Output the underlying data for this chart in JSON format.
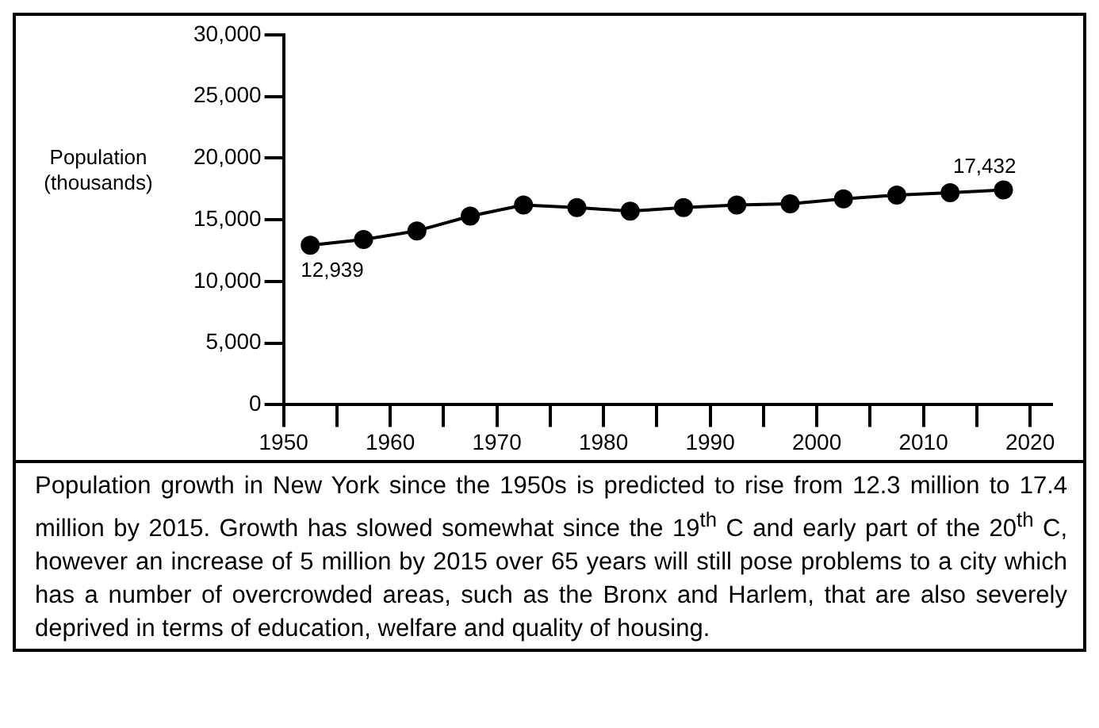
{
  "chart_data": {
    "type": "line",
    "ylabel": "Population\n(thousands)",
    "x": [
      1952.5,
      1957.5,
      1962.5,
      1967.5,
      1972.5,
      1977.5,
      1982.5,
      1987.5,
      1992.5,
      1997.5,
      2002.5,
      2007.5,
      2012.5,
      2017.5
    ],
    "series": [
      {
        "color": "#000000",
        "values": [
          12939,
          13400,
          14100,
          15300,
          16200,
          16000,
          15700,
          16000,
          16200,
          16300,
          16700,
          17000,
          17200,
          17432
        ],
        "value_labels": [
          "12,939",
          null,
          null,
          null,
          null,
          null,
          null,
          null,
          null,
          null,
          null,
          null,
          null,
          "17,432"
        ]
      }
    ],
    "xlim": [
      1950,
      2022
    ],
    "xticks": [
      1950,
      {
        "value": 1955,
        "label": null
      },
      1960,
      {
        "value": 1965,
        "label": null
      },
      1970,
      {
        "value": 1975,
        "label": null
      },
      1980,
      {
        "value": 1985,
        "label": null
      },
      1990,
      {
        "value": 1995,
        "label": null
      },
      2000,
      {
        "value": 2005,
        "label": null
      },
      2010,
      {
        "value": 2015,
        "label": null
      },
      2020
    ],
    "ylim": [
      0,
      30000
    ],
    "yticks": [
      {
        "value": 0,
        "label": "0"
      },
      {
        "value": 5000,
        "label": "5,000"
      },
      {
        "value": 10000,
        "label": "10,000"
      },
      {
        "value": 15000,
        "label": "15,000"
      },
      {
        "value": 20000,
        "label": "20,000"
      },
      {
        "value": 25000,
        "label": "25,000"
      },
      {
        "value": 30000,
        "label": "30,000"
      }
    ],
    "grid": false,
    "legend": false,
    "marker": "circle",
    "line_style": "solid",
    "annotations": [
      "Population growth in New York since the 1950s is predicted to rise from 12.3 million to 17.4 million by 2015. Growth has slowed somewhat since the 19$^{th}$ C and early part of the 20$^{th}$ C, however an increase of 5 million by 2015 over 65 years will still pose problems to a city which has a number of overcrowded  areas, such as the Bronx and Harlem, that are also severely deprived in terms of education, welfare and quality of housing."
    ]
  }
}
